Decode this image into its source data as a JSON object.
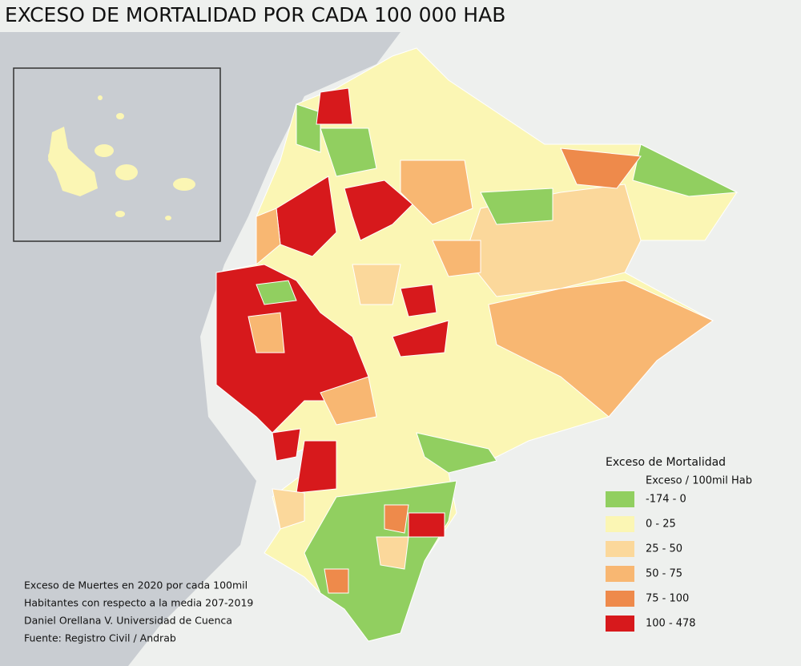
{
  "title": "EXCESO DE MORTALIDAD POR CADA 100 000 HAB",
  "legend": {
    "title": "Exceso de Mortalidad",
    "subtitle": "Exceso / 100mil Hab",
    "items": [
      {
        "label": "-174 - 0",
        "color": "#91cf60"
      },
      {
        "label": "0 - 25",
        "color": "#fbf6b4"
      },
      {
        "label": "25 - 50",
        "color": "#fbd89b"
      },
      {
        "label": "50 - 75",
        "color": "#f8b772"
      },
      {
        "label": "75 - 100",
        "color": "#ee8a4b"
      },
      {
        "label": "100 - 478",
        "color": "#d7191c"
      }
    ]
  },
  "notes": [
    "Exceso de Muertes en 2020 por cada 100mil",
    "Habitantes con respecto a la media 207-2019",
    "Daniel Orellana V. Universidad de Cuenca",
    "Fuente: Registro Civil / Andrab"
  ]
}
